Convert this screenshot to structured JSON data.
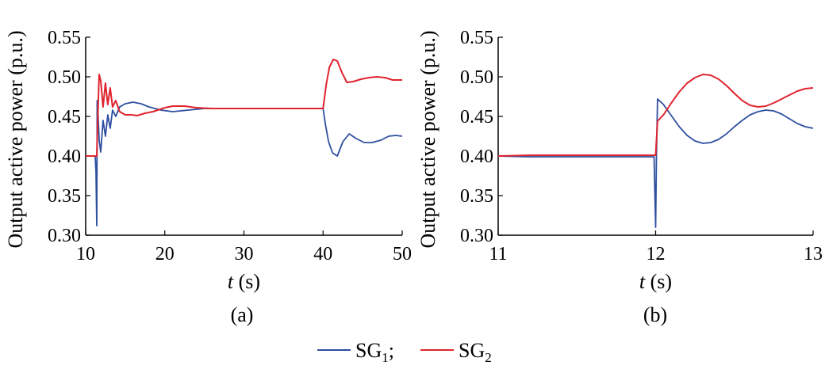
{
  "chart_data": [
    {
      "type": "line",
      "caption": "(a)",
      "xlabel_var": "t",
      "xlabel_unit": " (s)",
      "ylabel": "Output active power (p.u.)",
      "xlim": [
        10,
        50
      ],
      "ylim": [
        0.3,
        0.55
      ],
      "xticks": [
        "10",
        "20",
        "30",
        "40",
        "50"
      ],
      "yticks": [
        "0.30",
        "0.35",
        "0.40",
        "0.45",
        "0.50",
        "0.55"
      ],
      "grid": false,
      "series": [
        {
          "color": "#2e4fa0",
          "x": [
            10.0,
            11.0,
            11.2,
            11.3,
            11.4,
            11.45,
            11.55,
            11.7,
            11.9,
            12.2,
            12.5,
            12.8,
            13.1,
            13.4,
            13.8,
            14.3,
            15.0,
            16.0,
            17.0,
            18.0,
            19.5,
            21.0,
            23.0,
            25.0,
            28.0,
            32.0,
            36.0,
            40.0,
            40.3,
            40.7,
            41.2,
            41.8,
            42.5,
            43.3,
            44.2,
            45.2,
            46.2,
            47.3,
            48.3,
            49.2,
            50.0
          ],
          "y": [
            0.4,
            0.4,
            0.4,
            0.38,
            0.312,
            0.47,
            0.455,
            0.42,
            0.405,
            0.445,
            0.425,
            0.452,
            0.435,
            0.458,
            0.45,
            0.462,
            0.466,
            0.468,
            0.466,
            0.462,
            0.458,
            0.456,
            0.458,
            0.46,
            0.46,
            0.46,
            0.46,
            0.46,
            0.44,
            0.418,
            0.404,
            0.4,
            0.418,
            0.428,
            0.422,
            0.417,
            0.417,
            0.42,
            0.425,
            0.426,
            0.425
          ]
        },
        {
          "color": "#e0242f",
          "x": [
            10.0,
            11.0,
            11.2,
            11.4,
            11.5,
            11.7,
            11.9,
            12.2,
            12.5,
            12.8,
            13.1,
            13.4,
            13.8,
            14.3,
            15.0,
            15.8,
            16.5,
            17.5,
            18.5,
            20.0,
            21.0,
            22.5,
            24.0,
            26.0,
            29.0,
            33.0,
            38.5,
            40.0,
            40.4,
            40.8,
            41.3,
            41.8,
            42.4,
            43.0,
            43.8,
            44.8,
            45.8,
            46.8,
            47.8,
            48.8,
            50.0
          ],
          "y": [
            0.4,
            0.4,
            0.4,
            0.4,
            0.44,
            0.503,
            0.495,
            0.462,
            0.492,
            0.465,
            0.486,
            0.462,
            0.47,
            0.456,
            0.452,
            0.452,
            0.451,
            0.454,
            0.456,
            0.461,
            0.463,
            0.463,
            0.461,
            0.46,
            0.46,
            0.46,
            0.46,
            0.46,
            0.49,
            0.512,
            0.522,
            0.52,
            0.505,
            0.493,
            0.494,
            0.497,
            0.499,
            0.5,
            0.499,
            0.496,
            0.496
          ]
        }
      ]
    },
    {
      "type": "line",
      "caption": "(b)",
      "xlabel_var": "t",
      "xlabel_unit": " (s)",
      "ylabel": "Output active power (p.u.)",
      "xlim": [
        11,
        13
      ],
      "ylim": [
        0.3,
        0.55
      ],
      "xticks": [
        "11",
        "12",
        "13"
      ],
      "yticks": [
        "0.30",
        "0.35",
        "0.40",
        "0.45",
        "0.50",
        "0.55"
      ],
      "grid": false,
      "series": [
        {
          "color": "#2e4fa0",
          "x": [
            11.0,
            11.2,
            11.4,
            11.6,
            11.8,
            11.99,
            12.0,
            12.005,
            12.012,
            12.05,
            12.1,
            12.15,
            12.2,
            12.25,
            12.3,
            12.35,
            12.4,
            12.45,
            12.5,
            12.55,
            12.6,
            12.65,
            12.7,
            12.75,
            12.8,
            12.85,
            12.9,
            12.95,
            13.0
          ],
          "y": [
            0.4,
            0.399,
            0.399,
            0.399,
            0.399,
            0.399,
            0.31,
            0.399,
            0.472,
            0.465,
            0.451,
            0.437,
            0.426,
            0.419,
            0.416,
            0.417,
            0.421,
            0.428,
            0.437,
            0.445,
            0.452,
            0.456,
            0.458,
            0.457,
            0.453,
            0.447,
            0.441,
            0.437,
            0.435
          ]
        },
        {
          "color": "#e0242f",
          "x": [
            11.0,
            11.2,
            11.4,
            11.6,
            11.8,
            11.99,
            12.0,
            12.012,
            12.05,
            12.1,
            12.15,
            12.2,
            12.25,
            12.3,
            12.35,
            12.4,
            12.45,
            12.5,
            12.55,
            12.6,
            12.65,
            12.7,
            12.75,
            12.8,
            12.85,
            12.9,
            12.95,
            13.0
          ],
          "y": [
            0.4,
            0.401,
            0.401,
            0.401,
            0.401,
            0.401,
            0.401,
            0.444,
            0.452,
            0.467,
            0.481,
            0.492,
            0.499,
            0.503,
            0.502,
            0.497,
            0.489,
            0.479,
            0.47,
            0.464,
            0.462,
            0.463,
            0.467,
            0.472,
            0.477,
            0.482,
            0.485,
            0.486
          ]
        }
      ]
    }
  ],
  "legend": {
    "sep": ";",
    "items": [
      {
        "base": "SG",
        "sub": "1",
        "color": "#2e4fa0"
      },
      {
        "base": "SG",
        "sub": "2",
        "color": "#e0242f"
      }
    ]
  }
}
